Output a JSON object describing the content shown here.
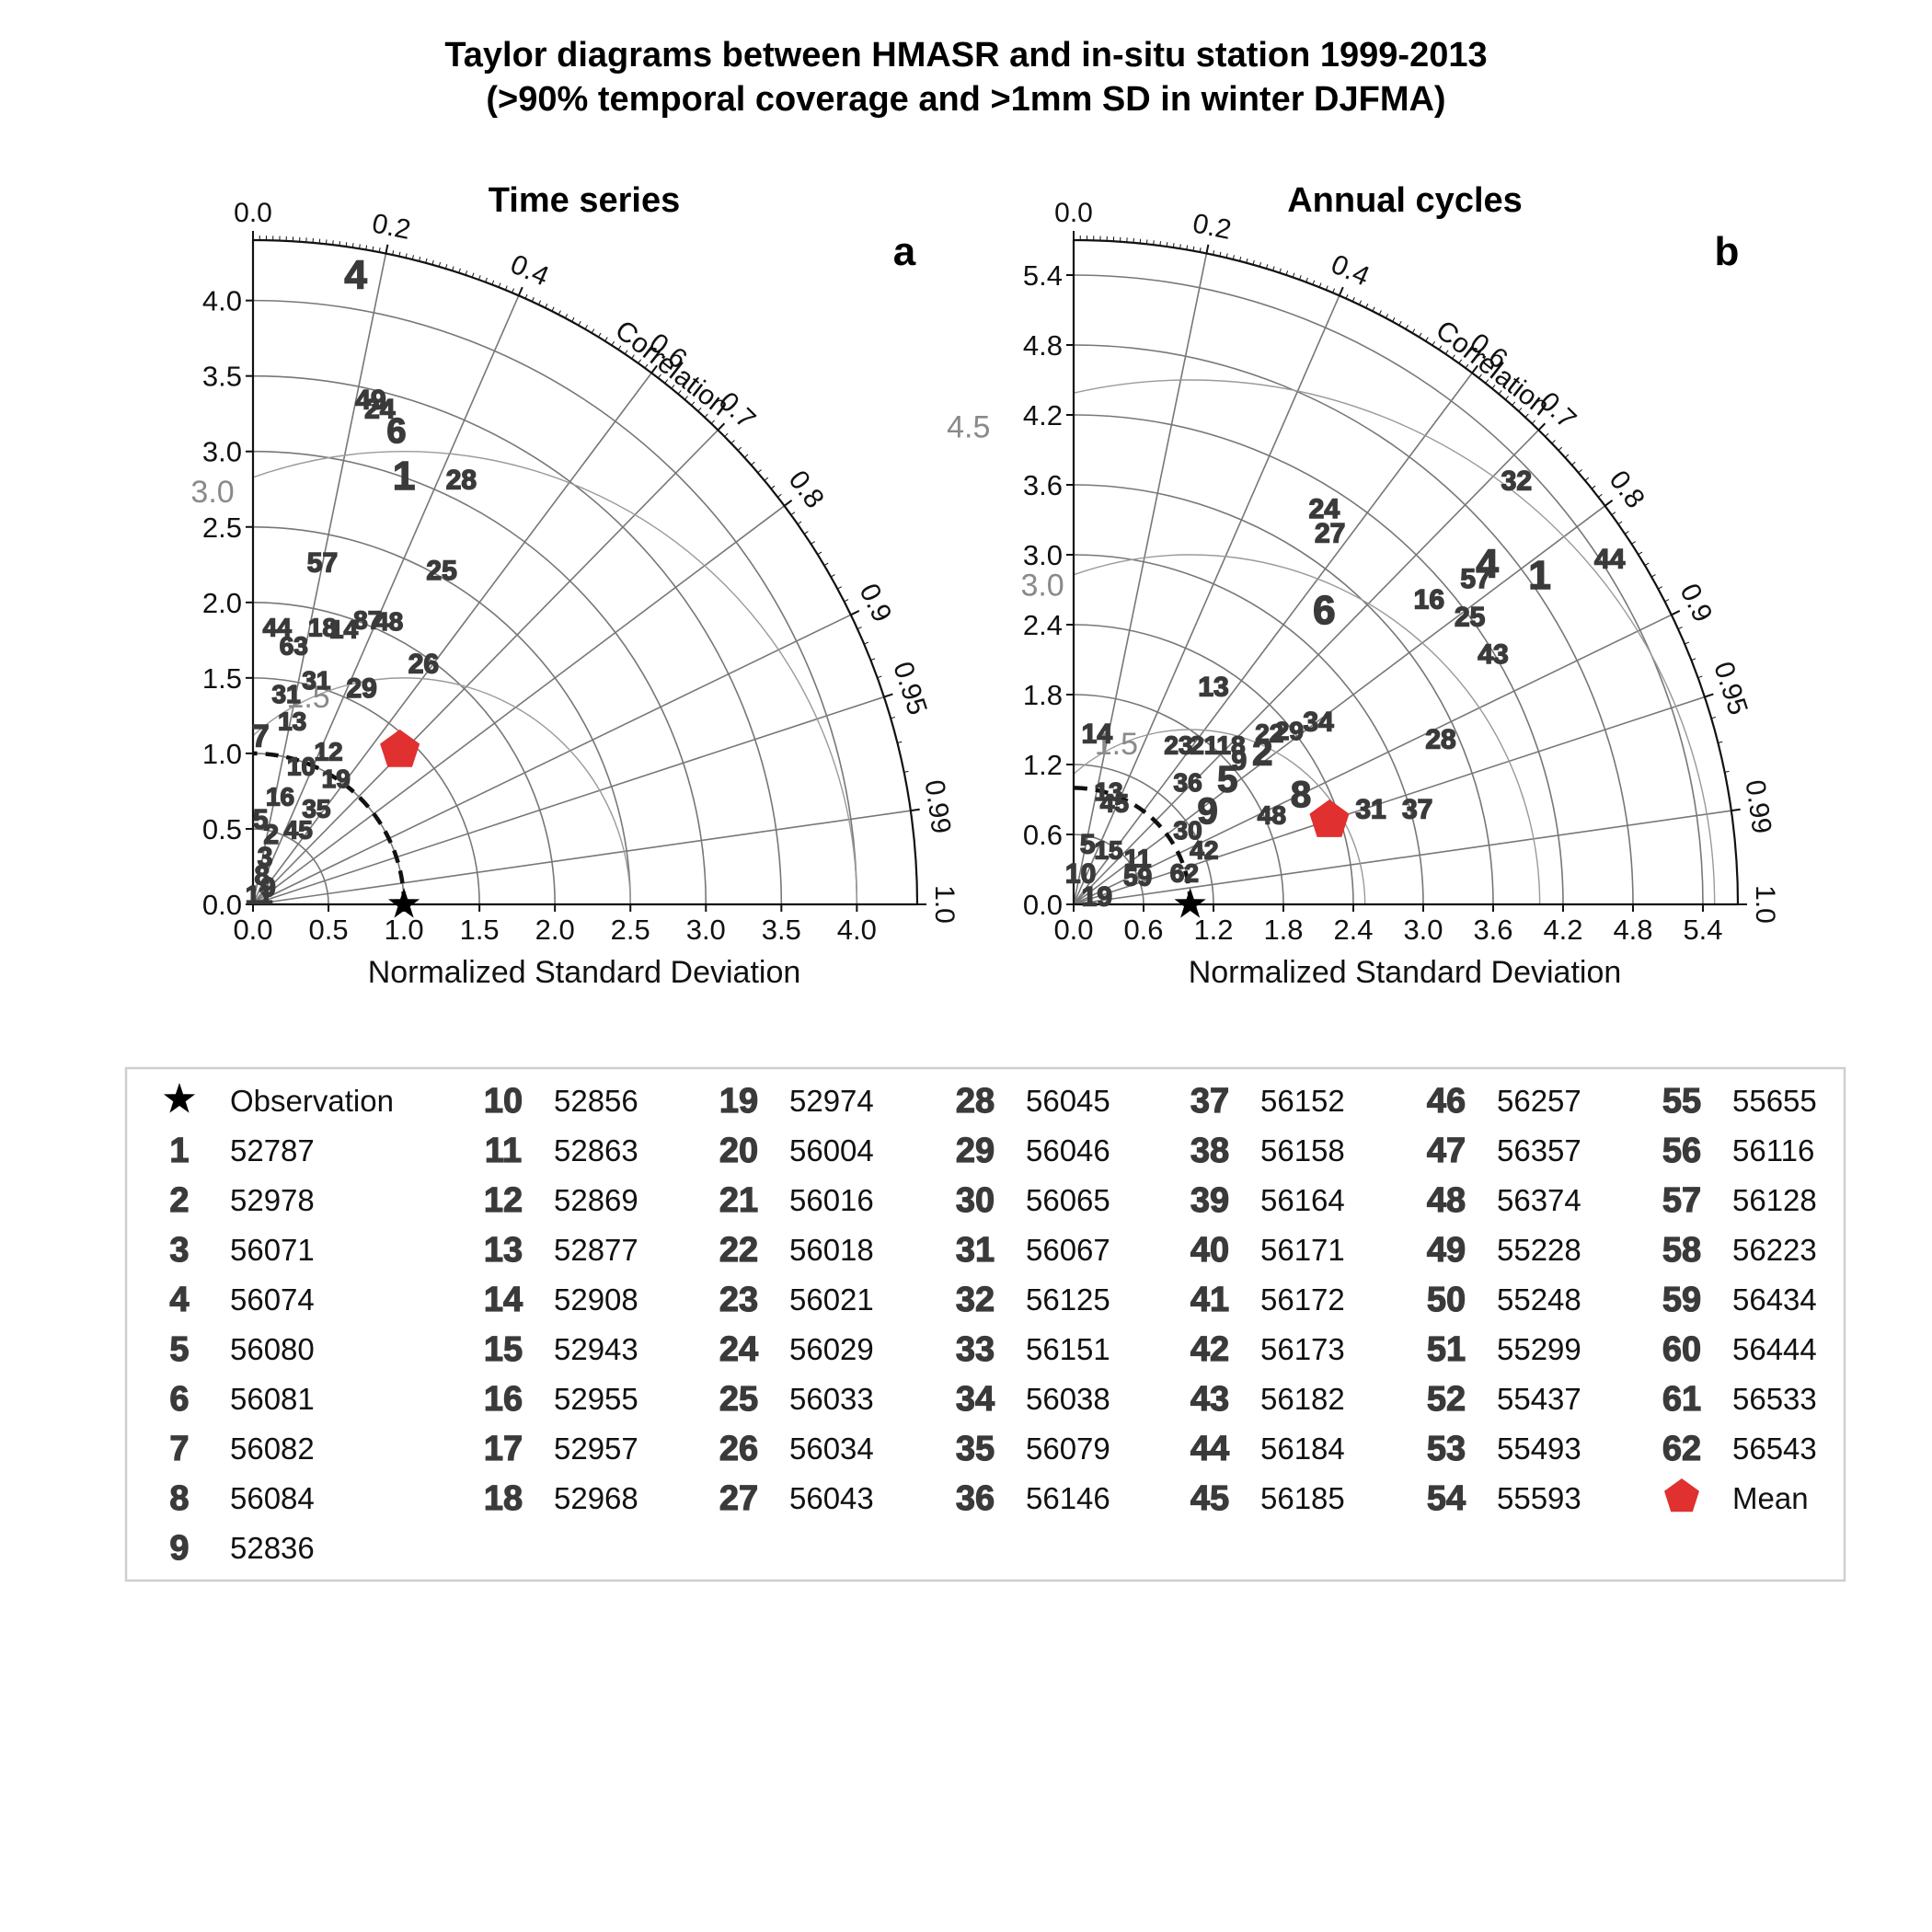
{
  "figure": {
    "title_line1": "Taylor diagrams between HMASR and in-situ station 1999-2013",
    "title_line2": "(>90% temporal coverage and >1mm SD in winter DJFMA)"
  },
  "colors": {
    "mean_marker": "#e03030",
    "station_text": "#3a3a3a",
    "grid": "#777777"
  },
  "chart_data": [
    {
      "type": "taylor",
      "title": "Time series",
      "panel_label": "a",
      "xlabel": "Normalized Standard Deviation",
      "correlation_label": "Correlation",
      "rmax": 4.4,
      "std_ticks": [
        "0.0",
        "0.5",
        "1.0",
        "1.5",
        "2.0",
        "2.5",
        "3.0",
        "3.5",
        "4.0"
      ],
      "corr_ticks": [
        "0.0",
        "0.2",
        "0.4",
        "0.6",
        "0.7",
        "0.8",
        "0.9",
        "0.95",
        "0.99",
        "1.0"
      ],
      "rms_contours": [
        1.5,
        3.0
      ],
      "rms_labels": [
        "1.5",
        "3.0"
      ],
      "observation": {
        "std": 1.0,
        "corr": 1.0
      },
      "mean": {
        "std": 1.41,
        "corr": 0.69
      },
      "points": [
        {
          "label": "4",
          "x": 0.68,
          "y": 4.15,
          "size": 44
        },
        {
          "label": "49",
          "x": 0.78,
          "y": 3.33,
          "size": 30
        },
        {
          "label": "24",
          "x": 0.84,
          "y": 3.27,
          "size": 30
        },
        {
          "label": "6",
          "x": 0.95,
          "y": 3.12,
          "size": 38
        },
        {
          "label": "1",
          "x": 1.0,
          "y": 2.82,
          "size": 44
        },
        {
          "label": "28",
          "x": 1.38,
          "y": 2.8,
          "size": 30
        },
        {
          "label": "57",
          "x": 0.46,
          "y": 2.25,
          "size": 30
        },
        {
          "label": "25",
          "x": 1.25,
          "y": 2.2,
          "size": 30
        },
        {
          "label": "44",
          "x": 0.16,
          "y": 1.82,
          "size": 28
        },
        {
          "label": "18",
          "x": 0.46,
          "y": 1.82,
          "size": 28
        },
        {
          "label": "87",
          "x": 0.76,
          "y": 1.87,
          "size": 28
        },
        {
          "label": "48",
          "x": 0.9,
          "y": 1.86,
          "size": 28
        },
        {
          "label": "14",
          "x": 0.6,
          "y": 1.81,
          "size": 28
        },
        {
          "label": "63",
          "x": 0.27,
          "y": 1.7,
          "size": 28
        },
        {
          "label": "26",
          "x": 1.13,
          "y": 1.58,
          "size": 30
        },
        {
          "label": "31",
          "x": 0.42,
          "y": 1.47,
          "size": 28
        },
        {
          "label": "29",
          "x": 0.72,
          "y": 1.42,
          "size": 30
        },
        {
          "label": "31",
          "x": 0.22,
          "y": 1.38,
          "size": 28
        },
        {
          "label": "13",
          "x": 0.26,
          "y": 1.2,
          "size": 28
        },
        {
          "label": "7",
          "x": 0.05,
          "y": 1.1,
          "size": 34
        },
        {
          "label": "12",
          "x": 0.5,
          "y": 1.0,
          "size": 28
        },
        {
          "label": "10",
          "x": 0.32,
          "y": 0.9,
          "size": 28
        },
        {
          "label": "19",
          "x": 0.55,
          "y": 0.82,
          "size": 28
        },
        {
          "label": "35",
          "x": 0.42,
          "y": 0.62,
          "size": 28
        },
        {
          "label": "16",
          "x": 0.18,
          "y": 0.7,
          "size": 28
        },
        {
          "label": "5",
          "x": 0.05,
          "y": 0.55,
          "size": 30
        },
        {
          "label": "45",
          "x": 0.3,
          "y": 0.48,
          "size": 28
        },
        {
          "label": "2",
          "x": 0.12,
          "y": 0.45,
          "size": 30
        },
        {
          "label": "3",
          "x": 0.08,
          "y": 0.3,
          "size": 30
        },
        {
          "label": "8",
          "x": 0.06,
          "y": 0.18,
          "size": 30
        },
        {
          "label": "9",
          "x": 0.1,
          "y": 0.1,
          "size": 30
        },
        {
          "label": "11",
          "x": 0.04,
          "y": 0.05,
          "size": 28
        }
      ]
    },
    {
      "type": "taylor",
      "title": "Annual cycles",
      "panel_label": "b",
      "xlabel": "Normalized Standard Deviation",
      "correlation_label": "Correlation",
      "rmax": 5.7,
      "std_ticks": [
        "0.0",
        "0.6",
        "1.2",
        "1.8",
        "2.4",
        "3.0",
        "3.6",
        "4.2",
        "4.8",
        "5.4"
      ],
      "corr_ticks": [
        "0.0",
        "0.2",
        "0.4",
        "0.6",
        "0.7",
        "0.8",
        "0.9",
        "0.95",
        "0.99",
        "1.0"
      ],
      "rms_contours": [
        1.5,
        3.0,
        4.5
      ],
      "rms_labels": [
        "1.5",
        "3.0",
        "4.5"
      ],
      "observation": {
        "std": 1.0,
        "corr": 1.0
      },
      "mean": {
        "std": 2.31,
        "corr": 0.95
      },
      "points": [
        {
          "label": "32",
          "x": 3.8,
          "y": 3.62,
          "size": 30
        },
        {
          "label": "44",
          "x": 4.6,
          "y": 2.95,
          "size": 30
        },
        {
          "label": "24",
          "x": 2.15,
          "y": 3.38,
          "size": 30
        },
        {
          "label": "27",
          "x": 2.2,
          "y": 3.17,
          "size": 30
        },
        {
          "label": "1",
          "x": 4.0,
          "y": 2.8,
          "size": 44
        },
        {
          "label": "4",
          "x": 3.55,
          "y": 2.9,
          "size": 44
        },
        {
          "label": "57",
          "x": 3.45,
          "y": 2.78,
          "size": 30
        },
        {
          "label": "16",
          "x": 3.05,
          "y": 2.6,
          "size": 30
        },
        {
          "label": "25",
          "x": 3.4,
          "y": 2.45,
          "size": 30
        },
        {
          "label": "6",
          "x": 2.15,
          "y": 2.5,
          "size": 44
        },
        {
          "label": "43",
          "x": 3.6,
          "y": 2.13,
          "size": 30
        },
        {
          "label": "13",
          "x": 1.2,
          "y": 1.85,
          "size": 30
        },
        {
          "label": "14",
          "x": 0.2,
          "y": 1.45,
          "size": 30
        },
        {
          "label": "28",
          "x": 3.15,
          "y": 1.4,
          "size": 30
        },
        {
          "label": "34",
          "x": 2.1,
          "y": 1.55,
          "size": 30
        },
        {
          "label": "23",
          "x": 0.9,
          "y": 1.35,
          "size": 28
        },
        {
          "label": "21",
          "x": 1.12,
          "y": 1.35,
          "size": 28
        },
        {
          "label": "18",
          "x": 1.35,
          "y": 1.35,
          "size": 28
        },
        {
          "label": "22",
          "x": 1.68,
          "y": 1.45,
          "size": 28
        },
        {
          "label": "29",
          "x": 1.85,
          "y": 1.47,
          "size": 28
        },
        {
          "label": "2",
          "x": 1.62,
          "y": 1.28,
          "size": 40
        },
        {
          "label": "9",
          "x": 1.42,
          "y": 1.22,
          "size": 30
        },
        {
          "label": "5",
          "x": 1.32,
          "y": 1.05,
          "size": 40
        },
        {
          "label": "36",
          "x": 0.98,
          "y": 1.03,
          "size": 28
        },
        {
          "label": "8",
          "x": 1.95,
          "y": 0.92,
          "size": 40
        },
        {
          "label": "9",
          "x": 1.15,
          "y": 0.78,
          "size": 40
        },
        {
          "label": "48",
          "x": 1.7,
          "y": 0.75,
          "size": 28
        },
        {
          "label": "31",
          "x": 2.55,
          "y": 0.8,
          "size": 30
        },
        {
          "label": "37",
          "x": 2.95,
          "y": 0.8,
          "size": 30
        },
        {
          "label": "13",
          "x": 0.3,
          "y": 0.95,
          "size": 28
        },
        {
          "label": "45",
          "x": 0.35,
          "y": 0.85,
          "size": 28
        },
        {
          "label": "30",
          "x": 0.98,
          "y": 0.62,
          "size": 28
        },
        {
          "label": "42",
          "x": 1.12,
          "y": 0.45,
          "size": 28
        },
        {
          "label": "62",
          "x": 0.95,
          "y": 0.25,
          "size": 28
        },
        {
          "label": "15",
          "x": 0.3,
          "y": 0.45,
          "size": 28
        },
        {
          "label": "11",
          "x": 0.55,
          "y": 0.38,
          "size": 28
        },
        {
          "label": "59",
          "x": 0.55,
          "y": 0.22,
          "size": 28
        },
        {
          "label": "5",
          "x": 0.12,
          "y": 0.5,
          "size": 30
        },
        {
          "label": "10",
          "x": 0.06,
          "y": 0.25,
          "size": 30
        },
        {
          "label": "19",
          "x": 0.2,
          "y": 0.05,
          "size": 30
        }
      ]
    }
  ],
  "legend": {
    "observation_label": "Observation",
    "mean_label": "Mean",
    "columns": [
      [
        [
          "1",
          "52787"
        ],
        [
          "2",
          "52978"
        ],
        [
          "3",
          "56071"
        ],
        [
          "4",
          "56074"
        ],
        [
          "5",
          "56080"
        ],
        [
          "6",
          "56081"
        ],
        [
          "7",
          "56082"
        ],
        [
          "8",
          "56084"
        ],
        [
          "9",
          "52836"
        ]
      ],
      [
        [
          "10",
          "52856"
        ],
        [
          "11",
          "52863"
        ],
        [
          "12",
          "52869"
        ],
        [
          "13",
          "52877"
        ],
        [
          "14",
          "52908"
        ],
        [
          "15",
          "52943"
        ],
        [
          "16",
          "52955"
        ],
        [
          "17",
          "52957"
        ],
        [
          "18",
          "52968"
        ]
      ],
      [
        [
          "19",
          "52974"
        ],
        [
          "20",
          "56004"
        ],
        [
          "21",
          "56016"
        ],
        [
          "22",
          "56018"
        ],
        [
          "23",
          "56021"
        ],
        [
          "24",
          "56029"
        ],
        [
          "25",
          "56033"
        ],
        [
          "26",
          "56034"
        ],
        [
          "27",
          "56043"
        ]
      ],
      [
        [
          "28",
          "56045"
        ],
        [
          "29",
          "56046"
        ],
        [
          "30",
          "56065"
        ],
        [
          "31",
          "56067"
        ],
        [
          "32",
          "56125"
        ],
        [
          "33",
          "56151"
        ],
        [
          "34",
          "56038"
        ],
        [
          "35",
          "56079"
        ],
        [
          "36",
          "56146"
        ]
      ],
      [
        [
          "37",
          "56152"
        ],
        [
          "38",
          "56158"
        ],
        [
          "39",
          "56164"
        ],
        [
          "40",
          "56171"
        ],
        [
          "41",
          "56172"
        ],
        [
          "42",
          "56173"
        ],
        [
          "43",
          "56182"
        ],
        [
          "44",
          "56184"
        ],
        [
          "45",
          "56185"
        ]
      ],
      [
        [
          "46",
          "56257"
        ],
        [
          "47",
          "56357"
        ],
        [
          "48",
          "56374"
        ],
        [
          "49",
          "55228"
        ],
        [
          "50",
          "55248"
        ],
        [
          "51",
          "55299"
        ],
        [
          "52",
          "55437"
        ],
        [
          "53",
          "55493"
        ],
        [
          "54",
          "55593"
        ]
      ],
      [
        [
          "55",
          "55655"
        ],
        [
          "56",
          "56116"
        ],
        [
          "57",
          "56128"
        ],
        [
          "58",
          "56223"
        ],
        [
          "59",
          "56434"
        ],
        [
          "60",
          "56444"
        ],
        [
          "61",
          "56533"
        ],
        [
          "62",
          "56543"
        ]
      ]
    ]
  }
}
